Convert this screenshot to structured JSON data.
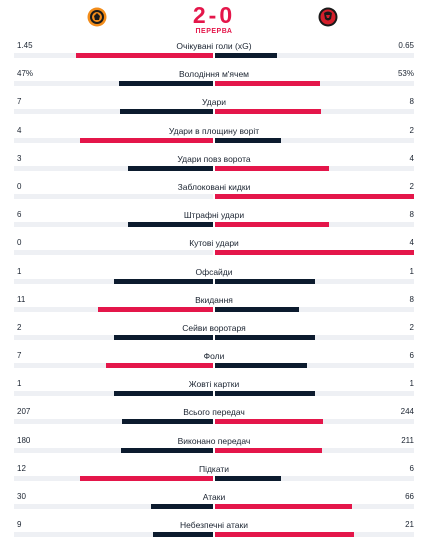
{
  "match": {
    "score": "2-0",
    "status": "ПЕРЕРВА",
    "home_logo": "shakhtar-crest-icon",
    "away_logo": "rennes-crest-icon"
  },
  "colors": {
    "leader": "#e4164a",
    "trailer": "#0c1b2e",
    "track": "#eef0f4"
  },
  "stats": [
    {
      "label": "Очікувані голи (xG)",
      "home": "1.45",
      "away": "0.65",
      "hv": 1.45,
      "av": 0.65
    },
    {
      "label": "Володіння м'ячем",
      "home": "47%",
      "away": "53%",
      "hv": 47,
      "av": 53
    },
    {
      "label": "Удари",
      "home": "7",
      "away": "8",
      "hv": 7,
      "av": 8
    },
    {
      "label": "Удари в площину воріт",
      "home": "4",
      "away": "2",
      "hv": 4,
      "av": 2
    },
    {
      "label": "Удари повз ворота",
      "home": "3",
      "away": "4",
      "hv": 3,
      "av": 4
    },
    {
      "label": "Заблоковані кидки",
      "home": "0",
      "away": "2",
      "hv": 0,
      "av": 2
    },
    {
      "label": "Штрафні удари",
      "home": "6",
      "away": "8",
      "hv": 6,
      "av": 8
    },
    {
      "label": "Кутові удари",
      "home": "0",
      "away": "4",
      "hv": 0,
      "av": 4
    },
    {
      "label": "Офсайди",
      "home": "1",
      "away": "1",
      "hv": 1,
      "av": 1
    },
    {
      "label": "Вкидання",
      "home": "11",
      "away": "8",
      "hv": 11,
      "av": 8
    },
    {
      "label": "Сейви воротаря",
      "home": "2",
      "away": "2",
      "hv": 2,
      "av": 2
    },
    {
      "label": "Фоли",
      "home": "7",
      "away": "6",
      "hv": 7,
      "av": 6
    },
    {
      "label": "Жовті картки",
      "home": "1",
      "away": "1",
      "hv": 1,
      "av": 1
    },
    {
      "label": "Всього передач",
      "home": "207",
      "away": "244",
      "hv": 207,
      "av": 244
    },
    {
      "label": "Виконано передач",
      "home": "180",
      "away": "211",
      "hv": 180,
      "av": 211
    },
    {
      "label": "Підкати",
      "home": "12",
      "away": "6",
      "hv": 12,
      "av": 6
    },
    {
      "label": "Атаки",
      "home": "30",
      "away": "66",
      "hv": 30,
      "av": 66
    },
    {
      "label": "Небезпечні атаки",
      "home": "9",
      "away": "21",
      "hv": 9,
      "av": 21
    }
  ]
}
